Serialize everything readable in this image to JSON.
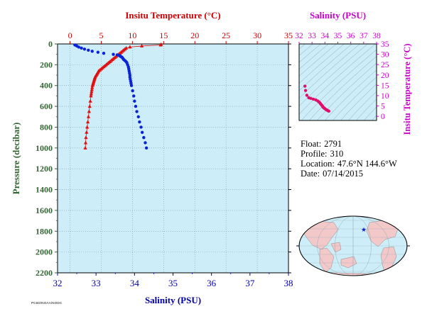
{
  "colors": {
    "plot_bg": "#cdeef8",
    "temperature": "#e01010",
    "salinity": "#0a22d8",
    "axis_temperature": "#cc0000",
    "axis_salinity": "#0000aa",
    "axis_pressure": "#336633",
    "ts_axis": "#cc00cc",
    "ts_points": "#e0106a",
    "ts_density": "#88a0b8",
    "land": "#f2c8c8",
    "ocean": "#cdeef8"
  },
  "info": {
    "float_label": "Float:",
    "float_value": "2791",
    "profile_label": "Profile:",
    "profile_value": "310",
    "location_label": "Location:",
    "location_value": "47.6°N  144.6°W",
    "date_label": "Date:",
    "date_value": "07/14/2015"
  },
  "footer_id": "PC6D/NOAA/NODC",
  "chart_data": [
    {
      "type": "line",
      "name": "profile",
      "title_top": "Insitu Temperature (°C)",
      "xlabel_bottom": "Salinity (PSU)",
      "ylabel": "Pressure (decibar)",
      "temperature_axis": {
        "range": [
          -2,
          35
        ],
        "ticks": [
          0,
          5,
          10,
          15,
          20,
          25,
          30,
          35
        ]
      },
      "salinity_axis": {
        "range": [
          32,
          38
        ],
        "ticks": [
          32,
          33,
          34,
          35,
          36,
          37,
          38
        ]
      },
      "pressure_axis": {
        "range": [
          0,
          2200
        ],
        "reversed": true,
        "ticks": [
          0,
          200,
          400,
          600,
          800,
          1000,
          1200,
          1400,
          1600,
          1800,
          2000,
          2200
        ]
      },
      "grid": true,
      "series": [
        {
          "marker": "triangle",
          "pressure": [
            5,
            10,
            20,
            30,
            40,
            50,
            60,
            70,
            80,
            90,
            100,
            110,
            120,
            130,
            140,
            150,
            160,
            170,
            180,
            190,
            200,
            210,
            220,
            230,
            240,
            250,
            260,
            270,
            280,
            290,
            300,
            310,
            320,
            330,
            340,
            350,
            360,
            370,
            380,
            390,
            400,
            420,
            440,
            460,
            480,
            500,
            550,
            600,
            650,
            700,
            750,
            800,
            850,
            900,
            950,
            1000
          ],
          "temperature": [
            14.6,
            14.5,
            11.5,
            9.6,
            9.0,
            8.8,
            8.6,
            8.4,
            8.2,
            8.0,
            7.8,
            7.6,
            7.4,
            7.2,
            7.0,
            6.8,
            6.6,
            6.4,
            6.2,
            6.0,
            5.8,
            5.6,
            5.4,
            5.2,
            5.0,
            4.8,
            4.6,
            4.5,
            4.4,
            4.3,
            4.2,
            4.1,
            4.0,
            3.95,
            3.9,
            3.85,
            3.8,
            3.75,
            3.7,
            3.65,
            3.6,
            3.55,
            3.5,
            3.45,
            3.4,
            3.35,
            3.25,
            3.15,
            3.05,
            2.95,
            2.85,
            2.75,
            2.65,
            2.55,
            2.5,
            2.45
          ]
        },
        {
          "marker": "circle",
          "pressure": [
            10,
            20,
            30,
            40,
            50,
            60,
            70,
            80,
            90,
            100,
            105,
            110,
            115,
            120,
            125,
            130,
            140,
            150,
            160,
            170,
            180,
            200,
            220,
            240,
            260,
            280,
            300,
            320,
            340,
            360,
            380,
            400,
            450,
            500,
            550,
            600,
            650,
            700,
            750,
            800,
            850,
            900,
            950,
            1000
          ],
          "salinity": [
            32.45,
            32.5,
            32.55,
            32.62,
            32.7,
            32.8,
            32.9,
            33.05,
            33.2,
            33.45,
            33.55,
            33.6,
            33.62,
            33.64,
            33.66,
            33.68,
            33.7,
            33.72,
            33.75,
            33.78,
            33.8,
            33.82,
            33.84,
            33.85,
            33.86,
            33.87,
            33.88,
            33.88,
            33.89,
            33.9,
            33.91,
            33.92,
            33.95,
            33.98,
            34.0,
            34.03,
            34.06,
            34.1,
            34.13,
            34.17,
            34.2,
            34.24,
            34.28,
            34.31
          ]
        }
      ]
    },
    {
      "type": "scatter",
      "name": "ts_diagram",
      "title_top": "Salinity (PSU)",
      "ylabel_right": "Insitu Temperature (°C)",
      "x_axis": {
        "range": [
          32,
          38
        ],
        "ticks": [
          32,
          33,
          34,
          35,
          36,
          37,
          38
        ]
      },
      "y_axis": {
        "range": [
          -2,
          35
        ],
        "ticks": [
          0,
          5,
          10,
          15,
          20,
          25,
          30,
          35
        ]
      },
      "salinity": [
        32.45,
        32.5,
        32.6,
        32.75,
        32.9,
        33.1,
        33.3,
        33.45,
        33.55,
        33.62,
        33.68,
        33.75,
        33.8,
        33.84,
        33.87,
        33.9,
        33.94,
        33.98,
        34.04,
        34.1,
        34.17,
        34.24,
        34.3
      ],
      "temperature": [
        14.6,
        12.5,
        10.2,
        9.0,
        8.7,
        8.3,
        7.9,
        7.4,
        6.9,
        6.4,
        5.9,
        5.4,
        5.0,
        4.6,
        4.4,
        4.2,
        4.0,
        3.8,
        3.5,
        3.2,
        3.0,
        2.7,
        2.5
      ]
    }
  ],
  "map": {
    "marker_label": "float-position"
  }
}
